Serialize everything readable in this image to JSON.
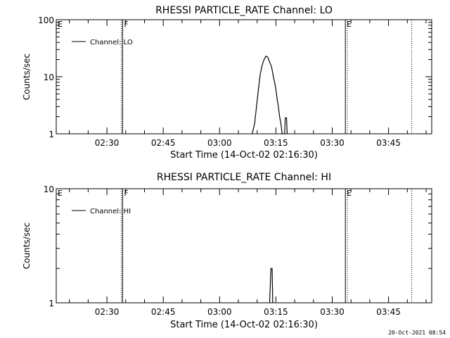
{
  "footer": {
    "timestamp": "20-Oct-2021 08:54"
  },
  "chart_data": [
    {
      "type": "line",
      "title": "RHESSI PARTICLE_RATE Channel: LO",
      "xlabel": "Start Time (14-Oct-02 02:16:30)",
      "ylabel": "Counts/sec",
      "y_scale": "log",
      "ylim": [
        1,
        100
      ],
      "xlim": [
        "02:16:30",
        "03:56:30"
      ],
      "x_ticks": [
        "02:30",
        "02:45",
        "03:00",
        "03:15",
        "03:30",
        "03:45"
      ],
      "y_ticks": [
        "1",
        "10",
        "100"
      ],
      "legend": {
        "placement": "top-left",
        "entries": [
          "Channel: LO"
        ]
      },
      "markers": [
        {
          "label": "E",
          "time": "02:16:30",
          "style": "solid"
        },
        {
          "label": "F",
          "time": "02:34:10",
          "style": "solid"
        },
        {
          "label": "",
          "time": "02:33:50",
          "style": "dotted"
        },
        {
          "label": "E",
          "time": "03:33:30",
          "style": "solid"
        },
        {
          "label": "",
          "time": "03:34:00",
          "style": "dotted"
        },
        {
          "label": "",
          "time": "03:51:10",
          "style": "dotted"
        }
      ],
      "series": [
        {
          "name": "Channel: LO",
          "points": [
            [
              "03:08:40",
              1
            ],
            [
              "03:09:20",
              1.5
            ],
            [
              "03:09:50",
              3
            ],
            [
              "03:10:20",
              6
            ],
            [
              "03:10:50",
              11
            ],
            [
              "03:11:20",
              16
            ],
            [
              "03:11:50",
              20
            ],
            [
              "03:12:20",
              23
            ],
            [
              "03:12:50",
              22
            ],
            [
              "03:13:20",
              18
            ],
            [
              "03:13:50",
              15
            ],
            [
              "03:14:20",
              10
            ],
            [
              "03:14:40",
              8
            ],
            [
              "03:15:00",
              6
            ],
            [
              "03:15:20",
              4
            ],
            [
              "03:15:40",
              3
            ],
            [
              "03:16:00",
              2
            ],
            [
              "03:16:20",
              1.5
            ],
            [
              "03:16:40",
              1
            ],
            [
              "03:17:20",
              1
            ],
            [
              "03:17:30",
              1.9
            ],
            [
              "03:17:50",
              1.9
            ],
            [
              "03:18:00",
              1
            ]
          ]
        }
      ]
    },
    {
      "type": "line",
      "title": "RHESSI PARTICLE_RATE Channel: HI",
      "xlabel": "Start Time (14-Oct-02 02:16:30)",
      "ylabel": "Counts/sec",
      "y_scale": "log",
      "ylim": [
        1,
        10
      ],
      "xlim": [
        "02:16:30",
        "03:56:30"
      ],
      "x_ticks": [
        "02:30",
        "02:45",
        "03:00",
        "03:15",
        "03:30",
        "03:45"
      ],
      "y_ticks": [
        "1",
        "10"
      ],
      "legend": {
        "placement": "top-left",
        "entries": [
          "Channel: HI"
        ]
      },
      "markers": [
        {
          "label": "E",
          "time": "02:16:30",
          "style": "solid"
        },
        {
          "label": "F",
          "time": "02:34:10",
          "style": "solid"
        },
        {
          "label": "",
          "time": "02:33:50",
          "style": "dotted"
        },
        {
          "label": "E",
          "time": "03:33:30",
          "style": "solid"
        },
        {
          "label": "",
          "time": "03:34:00",
          "style": "dotted"
        },
        {
          "label": "",
          "time": "03:51:10",
          "style": "dotted"
        }
      ],
      "series": [
        {
          "name": "Channel: HI",
          "points": [
            [
              "03:13:20",
              1
            ],
            [
              "03:13:40",
              2
            ],
            [
              "03:14:00",
              2
            ],
            [
              "03:14:10",
              1
            ]
          ]
        }
      ]
    }
  ]
}
